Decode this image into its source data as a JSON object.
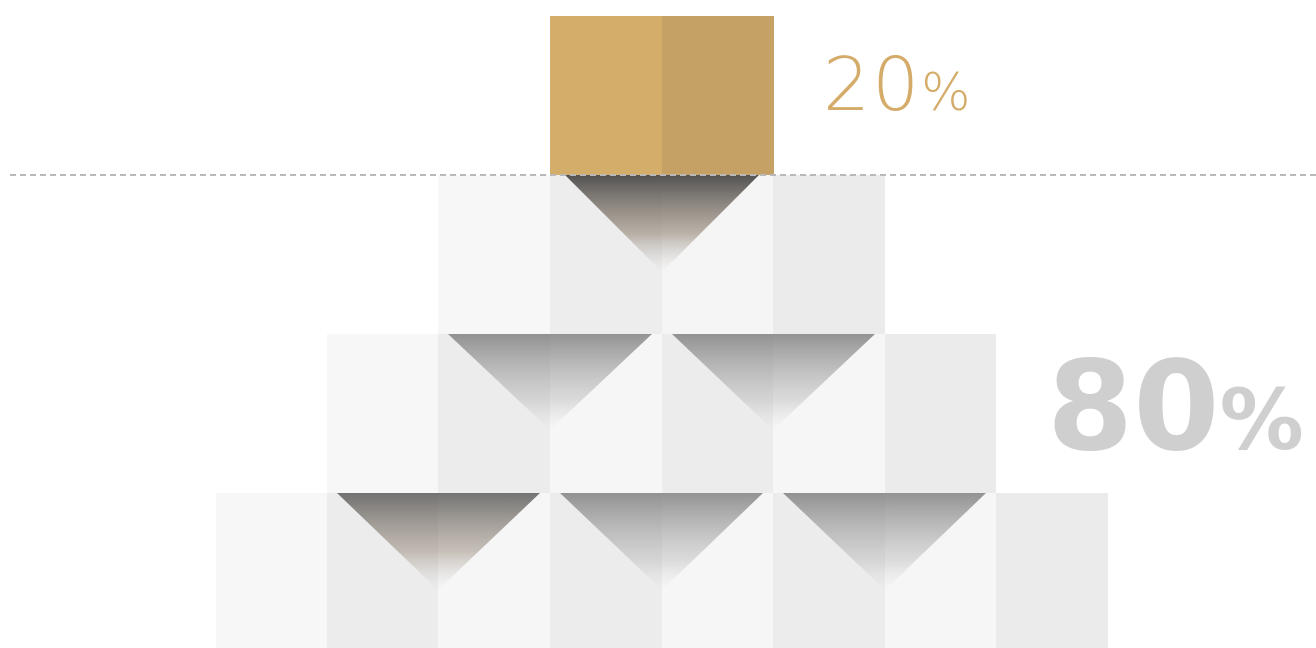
{
  "labels": {
    "top_value": "20",
    "top_unit": "%",
    "bottom_value": "80",
    "bottom_unit": "%"
  },
  "colors": {
    "gold_left": "#d4ad6a",
    "gold_right": "#c6a165",
    "block_light": "#f7f7f7",
    "block_mid": "#ececec",
    "text_gold": "#d4ab68",
    "text_gray": "#cfcfcf",
    "divider": "#b9b9b9"
  },
  "icons": [
    "gold-cube-icon",
    "white-cube-icon"
  ]
}
